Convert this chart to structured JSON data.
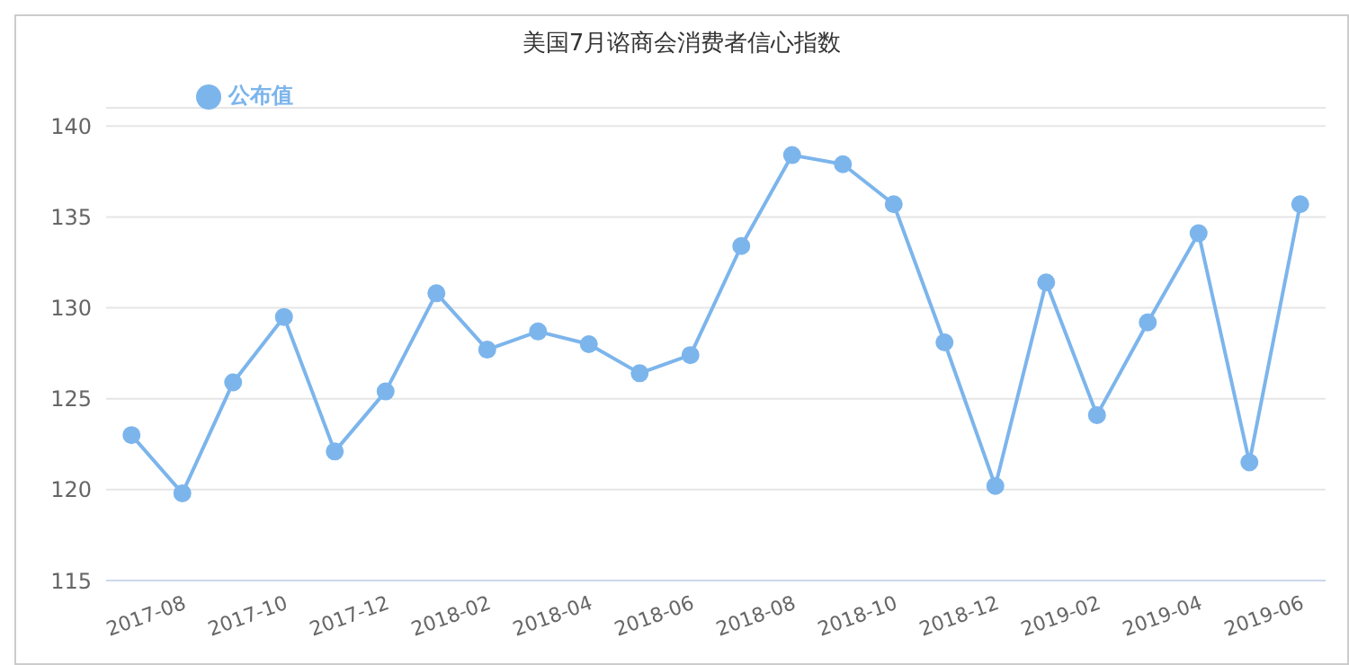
{
  "chart_data": {
    "type": "line",
    "title": "美国7月谘商会消费者信心指数",
    "categories": [
      null,
      "2017-08",
      null,
      "2017-10",
      null,
      "2017-12",
      null,
      "2018-02",
      null,
      "2018-04",
      null,
      "2018-06",
      null,
      "2018-08",
      null,
      "2018-10",
      null,
      "2018-12",
      null,
      "2019-02",
      null,
      "2019-04",
      null,
      "2019-06"
    ],
    "series": [
      {
        "name": "公布值",
        "color": "#7cb5ec",
        "values": [
          123.0,
          119.8,
          125.9,
          129.5,
          122.1,
          125.4,
          130.8,
          127.7,
          128.7,
          128.0,
          126.4,
          127.4,
          133.4,
          138.4,
          137.9,
          135.7,
          128.1,
          120.2,
          131.4,
          124.1,
          129.2,
          134.1,
          121.5,
          135.7
        ]
      }
    ],
    "ylim": [
      115,
      141
    ],
    "yticks": [
      115,
      120,
      125,
      130,
      135,
      140
    ],
    "grid": "y",
    "legend": "top left",
    "marker": "circle",
    "line_style": "solid"
  }
}
